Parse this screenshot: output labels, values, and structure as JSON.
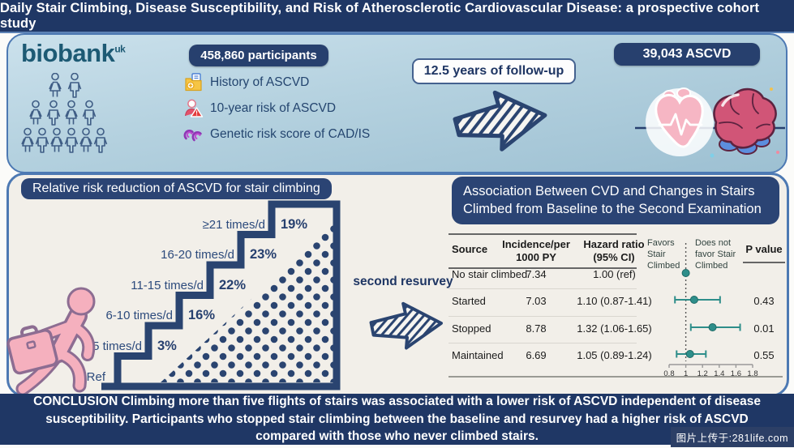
{
  "title": "Daily Stair Climbing, Disease Susceptibility, and Risk of Atherosclerotic Cardiovascular Disease: a prospective cohort study",
  "top": {
    "logo_text": "biobank",
    "logo_sup": "uk",
    "participants_badge": "458,860 participants",
    "risk_items": [
      {
        "icon": "folder-icon",
        "label": "History of ASCVD"
      },
      {
        "icon": "person-warning-icon",
        "label": "10-year risk of ASCVD"
      },
      {
        "icon": "dna-icon",
        "label": "Genetic risk score of CAD/IS"
      }
    ],
    "followup_badge": "12.5 years of follow-up",
    "outcome_badge": "39,043 ASCVD"
  },
  "left_panel": {
    "header": "Relative risk reduction of ASCVD for stair climbing",
    "ref_label": "Ref",
    "steps": [
      {
        "label": "1-5 times/d",
        "value": "3%"
      },
      {
        "label": "6-10 times/d",
        "value": "16%"
      },
      {
        "label": "11-15 times/d",
        "value": "22%"
      },
      {
        "label": "16-20 times/d",
        "value": "23%"
      },
      {
        "label": "≥21 times/d",
        "value": "19%"
      }
    ],
    "resurvey_label": "second resurvey"
  },
  "right_panel": {
    "header": "Association Between CVD and Changes in Stairs Climbed from Baseline to the Second Examination",
    "table": {
      "headers": {
        "source": "Source",
        "incidence": "Incidence/per 1000 PY",
        "hazard": "Hazard ratio (95% CI)",
        "favors_left": "Favors Stair Climbed",
        "favors_right": "Does not favor Stair Climbed",
        "pvalue": "P value"
      },
      "rows": [
        {
          "source": "No stair climbed",
          "incidence": "7.34",
          "hazard": "1.00 (ref)",
          "p": ""
        },
        {
          "source": "Started",
          "incidence": "7.03",
          "hazard": "1.10 (0.87-1.41)",
          "p": "0.43"
        },
        {
          "source": "Stopped",
          "incidence": "8.78",
          "hazard": "1.32 (1.06-1.65)",
          "p": "0.01"
        },
        {
          "source": "Maintained",
          "incidence": "6.69",
          "hazard": "1.05 (0.89-1.24)",
          "p": "0.55"
        }
      ]
    }
  },
  "conclusion": "CONCLUSION Climbing more than five flights of stairs was associated with a lower risk of ASCVD independent of disease susceptibility. Participants who stopped stair climbing between the baseline and resurvey had a higher risk of ASCVD compared with those who never climbed stairs.",
  "watermark": "图片上传于:281life.com",
  "colors": {
    "navy": "#1f3765",
    "panel_border": "#4d79b3",
    "stair_navy": "#2a4470",
    "teal": "#2e8e8a",
    "pink": "#f5b0be",
    "cream_panel": "#f2efe9"
  },
  "chart_data": [
    {
      "type": "bar",
      "title": "Relative risk reduction of ASCVD for stair climbing",
      "categories": [
        "Ref",
        "1-5 times/d",
        "6-10 times/d",
        "11-15 times/d",
        "16-20 times/d",
        "≥21 times/d"
      ],
      "values": [
        0,
        3,
        16,
        22,
        23,
        19
      ],
      "ylabel": "Relative risk reduction (%)",
      "style": "staircase infographic, reduction % labelled on each step"
    },
    {
      "type": "scatter",
      "title": "Association Between CVD and Changes in Stairs Climbed from Baseline to the Second Examination",
      "xlabel": "Hazard ratio (95% CI)",
      "xlim": [
        0.8,
        1.8
      ],
      "reference_line": 1.0,
      "xticks": [
        "0.8",
        "1",
        "1.2",
        "1.4",
        "1.6",
        "1.8"
      ],
      "series": [
        {
          "name": "No stair climbed",
          "incidence_per_1000py": 7.34,
          "hr": 1.0,
          "ci": [
            null,
            null
          ],
          "p": null
        },
        {
          "name": "Started",
          "incidence_per_1000py": 7.03,
          "hr": 1.1,
          "ci": [
            0.87,
            1.41
          ],
          "p": 0.43
        },
        {
          "name": "Stopped",
          "incidence_per_1000py": 8.78,
          "hr": 1.32,
          "ci": [
            1.06,
            1.65
          ],
          "p": 0.01
        },
        {
          "name": "Maintained",
          "incidence_per_1000py": 6.69,
          "hr": 1.05,
          "ci": [
            0.89,
            1.24
          ],
          "p": 0.55
        }
      ],
      "legend": [
        "Favors Stair Climbed (left of 1)",
        "Does not favor Stair Climbed (right of 1)"
      ]
    }
  ]
}
